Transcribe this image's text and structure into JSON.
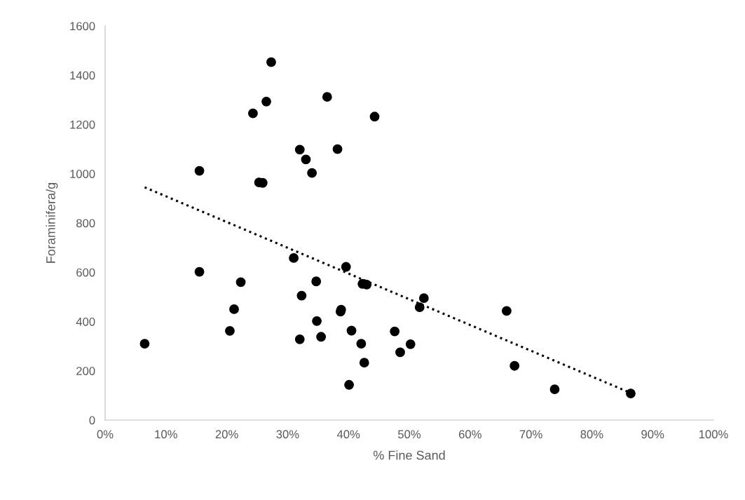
{
  "chart_data": {
    "type": "scatter",
    "xlabel": "% Fine Sand",
    "ylabel": "Foraminifera/g",
    "xlim": [
      0,
      100
    ],
    "ylim": [
      0,
      1600
    ],
    "xticks": [
      {
        "value": 0,
        "label": "0%"
      },
      {
        "value": 10,
        "label": "10%"
      },
      {
        "value": 20,
        "label": "20%"
      },
      {
        "value": 30,
        "label": "30%"
      },
      {
        "value": 40,
        "label": "40%"
      },
      {
        "value": 50,
        "label": "50%"
      },
      {
        "value": 60,
        "label": "60%"
      },
      {
        "value": 70,
        "label": "70%"
      },
      {
        "value": 80,
        "label": "80%"
      },
      {
        "value": 90,
        "label": "90%"
      },
      {
        "value": 100,
        "label": "100%"
      }
    ],
    "yticks": [
      0,
      200,
      400,
      600,
      800,
      1000,
      1200,
      1400,
      1600
    ],
    "grid": false,
    "marker": "circle",
    "series": [
      {
        "color": "#000000",
        "x": [
          6.5,
          15.5,
          15.5,
          20.5,
          21.2,
          22.3,
          24.3,
          25.3,
          25.9,
          26.5,
          27.3,
          31,
          32,
          32,
          32.3,
          33,
          34,
          34.7,
          34.8,
          35.5,
          36.5,
          38.2,
          38.7,
          38.8,
          39.6,
          40.1,
          40.5,
          42.1,
          42.3,
          42.6,
          43,
          44.3,
          47.6,
          48.5,
          50.2,
          51.7,
          52.4,
          66,
          67.3,
          73.9,
          86.4
        ],
        "values": [
          310,
          1012,
          602,
          362,
          450,
          560,
          1245,
          965,
          963,
          1293,
          1453,
          658,
          1098,
          328,
          505,
          1058,
          1003,
          563,
          402,
          338,
          1312,
          1100,
          440,
          448,
          622,
          143,
          363,
          310,
          553,
          233,
          550,
          1232,
          360,
          275,
          308,
          458,
          495,
          443,
          220,
          125,
          108
        ]
      },
      {
        "type": "line",
        "color": "#000000",
        "line_style": "dotted",
        "marker": "none",
        "x": [
          6.5,
          86.4
        ],
        "values": [
          945,
          110
        ]
      }
    ]
  }
}
